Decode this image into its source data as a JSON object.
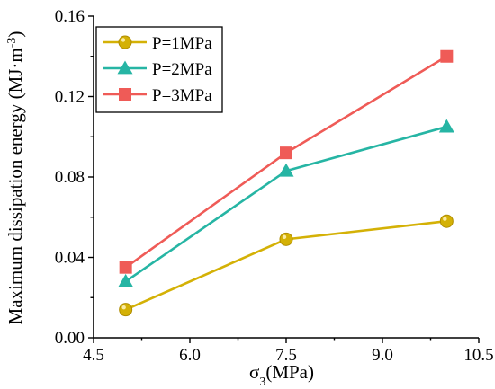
{
  "chart_data": {
    "type": "line",
    "x": [
      5.0,
      7.5,
      10.0
    ],
    "xlabel": "σ3(MPa)",
    "xlabel_main": "σ",
    "xlabel_sub": "3",
    "xlabel_rest": "(MPa)",
    "ylabel": "Maximum dissipation energy (MJ·m-3)",
    "ylabel_main": "Maximum dissipation energy (MJ·m",
    "ylabel_sup": "-3",
    "ylabel_close": ")",
    "xlim": [
      4.5,
      10.5
    ],
    "ylim": [
      0.0,
      0.16
    ],
    "xticks": [
      4.5,
      6.0,
      7.5,
      9.0,
      10.5
    ],
    "xtick_labels": [
      "4.5",
      "6.0",
      "7.5",
      "9.0",
      "10.5"
    ],
    "yticks": [
      0.0,
      0.04,
      0.08,
      0.12,
      0.16
    ],
    "ytick_labels": [
      "0.00",
      "0.04",
      "0.08",
      "0.12",
      "0.16"
    ],
    "grid": false,
    "legend_position": "top-left",
    "series": [
      {
        "name": "P=1MPa",
        "values": [
          0.014,
          0.049,
          0.058
        ],
        "color": "#d4b106",
        "marker": "circle"
      },
      {
        "name": "P=2MPa",
        "values": [
          0.028,
          0.083,
          0.105
        ],
        "color": "#26b5a4",
        "marker": "triangle"
      },
      {
        "name": "P=3MPa",
        "values": [
          0.035,
          0.092,
          0.14
        ],
        "color": "#ef5b57",
        "marker": "square"
      }
    ]
  }
}
